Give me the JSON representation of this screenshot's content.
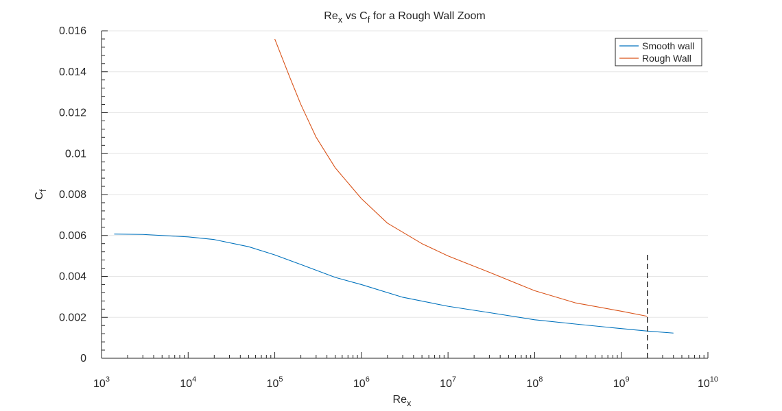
{
  "chart_data": {
    "type": "line",
    "title": {
      "parts": [
        {
          "t": "Re",
          "sub": false
        },
        {
          "t": "x",
          "sub": true
        },
        {
          "t": " vs C",
          "sub": false
        },
        {
          "t": "f",
          "sub": true
        },
        {
          "t": " for a Rough Wall Zoom",
          "sub": false
        }
      ]
    },
    "xlabel": {
      "base": "Re",
      "sub": "x"
    },
    "ylabel": {
      "base": "C",
      "sub": "f"
    },
    "x_scale": "log",
    "xlim": [
      1000,
      10000000000
    ],
    "ylim": [
      0,
      0.016
    ],
    "x_ticks": [
      {
        "base": "10",
        "exp": "3"
      },
      {
        "base": "10",
        "exp": "4"
      },
      {
        "base": "10",
        "exp": "5"
      },
      {
        "base": "10",
        "exp": "6"
      },
      {
        "base": "10",
        "exp": "7"
      },
      {
        "base": "10",
        "exp": "8"
      },
      {
        "base": "10",
        "exp": "9"
      },
      {
        "base": "10",
        "exp": "10"
      }
    ],
    "x_tick_values": [
      1000,
      10000,
      100000,
      1000000,
      10000000,
      100000000,
      1000000000,
      10000000000
    ],
    "y_ticks": [
      "0",
      "0.002",
      "0.004",
      "0.006",
      "0.008",
      "0.01",
      "0.012",
      "0.014",
      "0.016"
    ],
    "y_tick_values": [
      0,
      0.002,
      0.004,
      0.006,
      0.008,
      0.01,
      0.012,
      0.014,
      0.016
    ],
    "y_minor_step": 0.0004,
    "grid_y": true,
    "grid_x": false,
    "legend_position": "top-right",
    "series": [
      {
        "name": "Smooth wall",
        "color": "#0072BD",
        "x": [
          1400,
          3000,
          10000,
          20000,
          50000,
          100000,
          200000,
          500000,
          1000000,
          3000000,
          10000000,
          30000000,
          100000000,
          300000000,
          1000000000,
          2000000000,
          4000000000
        ],
        "y": [
          0.00607,
          0.00605,
          0.00593,
          0.0058,
          0.00545,
          0.00505,
          0.00458,
          0.00395,
          0.0036,
          0.00298,
          0.00254,
          0.00223,
          0.00188,
          0.00167,
          0.00145,
          0.00133,
          0.00123
        ]
      },
      {
        "name": "Rough Wall",
        "color": "#D95319",
        "x": [
          100000,
          150000,
          200000,
          300000,
          500000,
          1000000,
          2000000,
          5000000,
          10000000,
          30000000,
          100000000,
          300000000,
          1000000000,
          2000000000
        ],
        "y": [
          0.0156,
          0.0137,
          0.0124,
          0.0108,
          0.0093,
          0.0078,
          0.0066,
          0.0056,
          0.005,
          0.0042,
          0.0033,
          0.0027,
          0.0023,
          0.00205
        ]
      }
    ],
    "annotations": [
      {
        "type": "vertical-dashed-line",
        "x": 2000000000,
        "y_range": [
          0,
          0.0052
        ],
        "color": "#000000"
      }
    ]
  }
}
